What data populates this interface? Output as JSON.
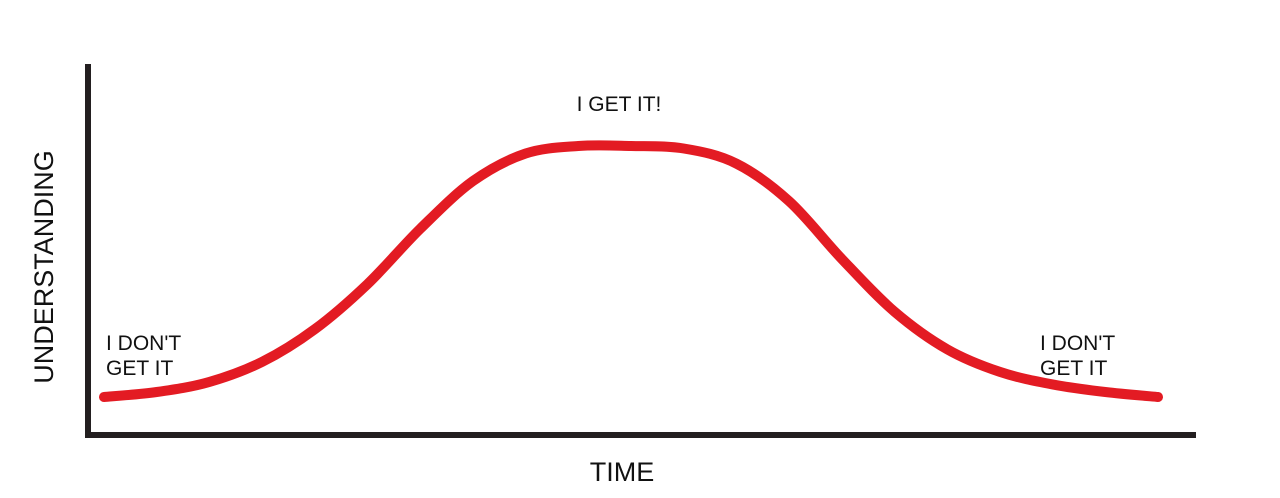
{
  "chart_data": {
    "type": "line",
    "title": "",
    "xlabel": "TIME",
    "ylabel": "UNDERSTANDING",
    "grid": false,
    "legend": "none",
    "series": [
      {
        "color": "#e31b23",
        "x": [
          0,
          0.05,
          0.1,
          0.15,
          0.2,
          0.25,
          0.3,
          0.35,
          0.4,
          0.45,
          0.5,
          0.55,
          0.6,
          0.65,
          0.7,
          0.75,
          0.8,
          0.85,
          0.9,
          0.95,
          1.0
        ],
        "y": [
          0.0,
          0.02,
          0.06,
          0.14,
          0.27,
          0.45,
          0.67,
          0.86,
          0.97,
          1.0,
          1.0,
          0.99,
          0.93,
          0.78,
          0.55,
          0.34,
          0.19,
          0.1,
          0.05,
          0.02,
          0.0
        ]
      }
    ],
    "annotations": [
      {
        "text": [
          "I DON'T",
          "GET IT"
        ],
        "anchor": "start"
      },
      {
        "text": [
          "I GET IT!"
        ],
        "anchor": "peak"
      },
      {
        "text": [
          "I DON'T",
          "GET IT"
        ],
        "anchor": "end"
      }
    ],
    "axis_color": "#231f20"
  }
}
